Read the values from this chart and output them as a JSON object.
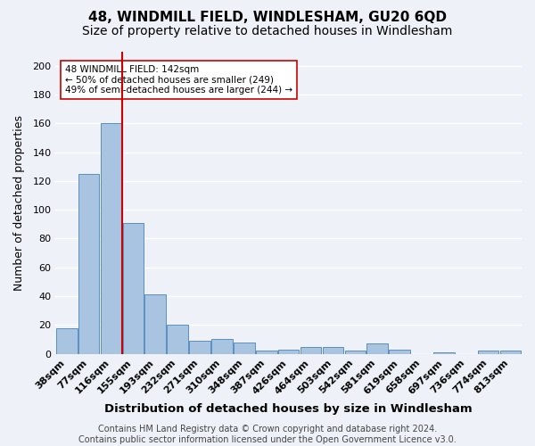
{
  "title": "48, WINDMILL FIELD, WINDLESHAM, GU20 6QD",
  "subtitle": "Size of property relative to detached houses in Windlesham",
  "xlabel": "Distribution of detached houses by size in Windlesham",
  "ylabel": "Number of detached properties",
  "categories": [
    "38sqm",
    "77sqm",
    "116sqm",
    "155sqm",
    "193sqm",
    "232sqm",
    "271sqm",
    "310sqm",
    "348sqm",
    "387sqm",
    "426sqm",
    "464sqm",
    "503sqm",
    "542sqm",
    "581sqm",
    "619sqm",
    "658sqm",
    "697sqm",
    "736sqm",
    "774sqm",
    "813sqm"
  ],
  "values": [
    18,
    125,
    160,
    91,
    41,
    20,
    9,
    10,
    8,
    2,
    3,
    5,
    5,
    2,
    7,
    3,
    0,
    1,
    0,
    2,
    2
  ],
  "bar_color": "#a8c4e0",
  "bar_edge_color": "#5a8fc0",
  "vline_x": 2.5,
  "vline_color": "#cc0000",
  "annotation_text": "48 WINDMILL FIELD: 142sqm\n← 50% of detached houses are smaller (249)\n49% of semi-detached houses are larger (244) →",
  "annotation_box_color": "#ffffff",
  "annotation_box_edge_color": "#cc0000",
  "ylim": [
    0,
    210
  ],
  "yticks": [
    0,
    20,
    40,
    60,
    80,
    100,
    120,
    140,
    160,
    180,
    200
  ],
  "footer": "Contains HM Land Registry data © Crown copyright and database right 2024.\nContains public sector information licensed under the Open Government Licence v3.0.",
  "background_color": "#eef2f8",
  "grid_color": "#ffffff",
  "title_fontsize": 11,
  "subtitle_fontsize": 10,
  "xlabel_fontsize": 9.5,
  "ylabel_fontsize": 9,
  "tick_fontsize": 8,
  "footer_fontsize": 7
}
